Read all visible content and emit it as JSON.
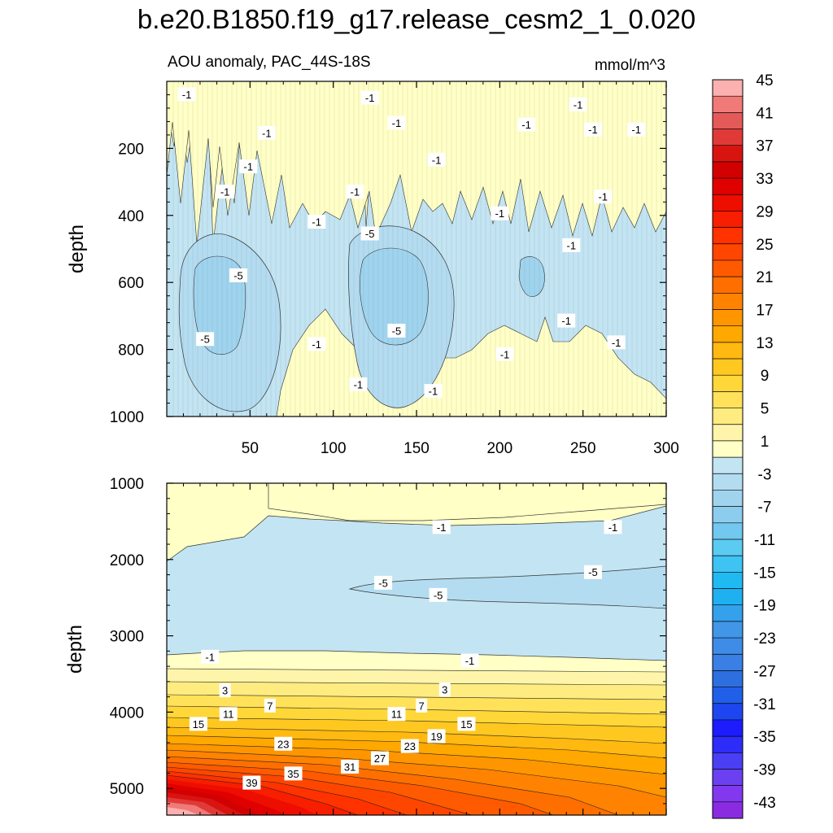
{
  "title": "b.e20.B1850.f19_g17.release_cesm2_1_0.020",
  "subtitle_left": "AOU anomaly, PAC_44S-18S",
  "subtitle_right": "mmol/m^3",
  "chart_data": [
    {
      "type": "contour",
      "panel": "upper",
      "xlabel": "",
      "ylabel": "depth",
      "xlim": [
        0,
        300
      ],
      "ylim": [
        1000,
        0
      ],
      "x_ticks": [
        50,
        100,
        150,
        200,
        250,
        300
      ],
      "x_tick_labels": [
        "50",
        "100",
        "150",
        "200",
        "250",
        "300"
      ],
      "y_ticks": [
        200,
        400,
        600,
        800,
        1000
      ],
      "y_tick_labels": [
        "200",
        "400",
        "600",
        "800",
        "1000"
      ],
      "contour_labels": [
        {
          "text": "-1",
          "x": 12,
          "y": 40
        },
        {
          "text": "-1",
          "x": 122,
          "y": 50
        },
        {
          "text": "-1",
          "x": 138,
          "y": 125
        },
        {
          "text": "-1",
          "x": 60,
          "y": 155
        },
        {
          "text": "-1",
          "x": 49,
          "y": 255
        },
        {
          "text": "-1",
          "x": 35,
          "y": 330
        },
        {
          "text": "-1",
          "x": 113,
          "y": 330
        },
        {
          "text": "-1",
          "x": 90,
          "y": 420
        },
        {
          "text": "-1",
          "x": 162,
          "y": 235
        },
        {
          "text": "-1",
          "x": 216,
          "y": 130
        },
        {
          "text": "-1",
          "x": 200,
          "y": 395
        },
        {
          "text": "-1",
          "x": 247,
          "y": 70
        },
        {
          "text": "-1",
          "x": 256,
          "y": 145
        },
        {
          "text": "-1",
          "x": 282,
          "y": 145
        },
        {
          "text": "-1",
          "x": 262,
          "y": 345
        },
        {
          "text": "-1",
          "x": 243,
          "y": 490
        },
        {
          "text": "-1",
          "x": 240,
          "y": 715
        },
        {
          "text": "-1",
          "x": 270,
          "y": 780
        },
        {
          "text": "-1",
          "x": 90,
          "y": 785
        },
        {
          "text": "-1",
          "x": 203,
          "y": 815
        },
        {
          "text": "-1",
          "x": 115,
          "y": 905
        },
        {
          "text": "-1",
          "x": 160,
          "y": 925
        },
        {
          "text": "-5",
          "x": 122,
          "y": 455
        },
        {
          "text": "-5",
          "x": 43,
          "y": 580
        },
        {
          "text": "-5",
          "x": 23,
          "y": 770
        },
        {
          "text": "-5",
          "x": 138,
          "y": 745
        }
      ]
    },
    {
      "type": "contour",
      "panel": "lower",
      "xlabel": "",
      "ylabel": "depth",
      "xlim": [
        0,
        300
      ],
      "ylim": [
        5350,
        1000
      ],
      "x_ticks": [
        50,
        100,
        150,
        200,
        250,
        300
      ],
      "x_tick_labels": [],
      "y_ticks": [
        1000,
        2000,
        3000,
        4000,
        5000
      ],
      "y_tick_labels": [
        "1000",
        "2000",
        "3000",
        "4000",
        "5000"
      ],
      "contour_labels": [
        {
          "text": "-1",
          "x": 165,
          "y": 1580
        },
        {
          "text": "-1",
          "x": 268,
          "y": 1580
        },
        {
          "text": "-5",
          "x": 130,
          "y": 2310
        },
        {
          "text": "-5",
          "x": 163,
          "y": 2470
        },
        {
          "text": "-5",
          "x": 256,
          "y": 2170
        },
        {
          "text": "-1",
          "x": 26,
          "y": 3280
        },
        {
          "text": "-1",
          "x": 182,
          "y": 3330
        },
        {
          "text": "3",
          "x": 35,
          "y": 3720
        },
        {
          "text": "3",
          "x": 167,
          "y": 3710
        },
        {
          "text": "7",
          "x": 62,
          "y": 3920
        },
        {
          "text": "7",
          "x": 153,
          "y": 3920
        },
        {
          "text": "11",
          "x": 37,
          "y": 4030
        },
        {
          "text": "11",
          "x": 138,
          "y": 4030
        },
        {
          "text": "15",
          "x": 19,
          "y": 4160
        },
        {
          "text": "15",
          "x": 180,
          "y": 4160
        },
        {
          "text": "19",
          "x": 162,
          "y": 4320
        },
        {
          "text": "23",
          "x": 70,
          "y": 4420
        },
        {
          "text": "23",
          "x": 146,
          "y": 4450
        },
        {
          "text": "27",
          "x": 128,
          "y": 4610
        },
        {
          "text": "31",
          "x": 110,
          "y": 4720
        },
        {
          "text": "35",
          "x": 76,
          "y": 4810
        },
        {
          "text": "39",
          "x": 51,
          "y": 4930
        }
      ]
    },
    {
      "type": "colorbar",
      "levels": [
        -45,
        -43,
        -41,
        -39,
        -37,
        -35,
        -33,
        -31,
        -29,
        -27,
        -25,
        -23,
        -21,
        -19,
        -17,
        -15,
        -13,
        -11,
        -9,
        -7,
        -5,
        -3,
        -1,
        1,
        3,
        5,
        7,
        9,
        11,
        13,
        15,
        17,
        19,
        21,
        23,
        25,
        27,
        29,
        31,
        33,
        35,
        37,
        39,
        41,
        43,
        45
      ],
      "tick_labels": [
        "-43",
        "-39",
        "-35",
        "-31",
        "-27",
        "-23",
        "-19",
        "-15",
        "-11",
        "-7",
        "-3",
        "1",
        "5",
        "9",
        "13",
        "17",
        "21",
        "25",
        "29",
        "33",
        "37",
        "41",
        "45"
      ],
      "colors": [
        "#8a2be2",
        "#8238ee",
        "#6a40f0",
        "#4a3ff5",
        "#2e2cf8",
        "#1c1cff",
        "#1e46f0",
        "#2060e8",
        "#2e6fe0",
        "#3a7fe3",
        "#3f8ce6",
        "#4196e8",
        "#35a0ec",
        "#1eb0f0",
        "#20baf3",
        "#3ec3f2",
        "#5ccbf2",
        "#72c8ee",
        "#8ccdee",
        "#a0d4ee",
        "#b4dcf0",
        "#c3e4f2",
        "#ffffc6",
        "#fff5aa",
        "#ffec80",
        "#ffe25a",
        "#ffd738",
        "#ffc820",
        "#ffb910",
        "#ffa800",
        "#ff9600",
        "#ff8300",
        "#ff6f00",
        "#ff5a00",
        "#ff4600",
        "#ff3200",
        "#f81e00",
        "#ee0e00",
        "#e00000",
        "#d20000",
        "#d81410",
        "#e03a38",
        "#e45a58",
        "#f07a78",
        "#fcb0b0"
      ]
    }
  ]
}
